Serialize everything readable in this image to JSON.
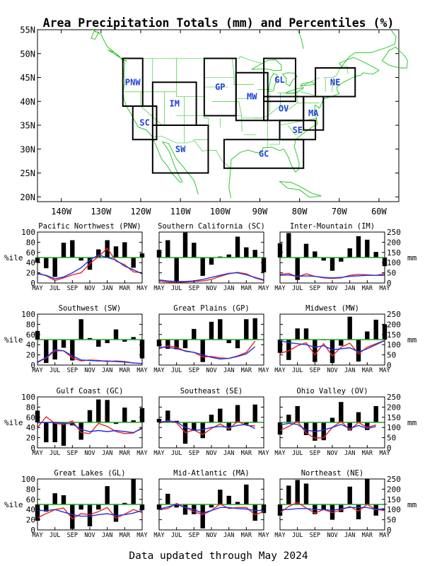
{
  "title": "Area Precipitation Totals (mm) and Percentiles (%)",
  "footer": "Data updated through May 2024",
  "colors": {
    "coast": "#19c419",
    "border": "#19c419",
    "region_label": "#1d3fe0",
    "bar": "#000000",
    "red_line": "#ee2222",
    "blue_line": "#2233dd",
    "ref_line": "#22aa22"
  },
  "map": {
    "lat_labels": [
      "55N",
      "50N",
      "45N",
      "40N",
      "35N",
      "30N",
      "25N",
      "20N"
    ],
    "lon_labels": [
      "140W",
      "130W",
      "120W",
      "110W",
      "100W",
      "90W",
      "80W",
      "70W",
      "60W"
    ],
    "regions": [
      {
        "code": "PNW",
        "w": -124.5,
        "e": -119.5,
        "s": 39,
        "n": 49
      },
      {
        "code": "SC",
        "w": -122,
        "e": -116,
        "s": 32,
        "n": 39
      },
      {
        "code": "IM",
        "w": -117,
        "e": -106,
        "s": 35,
        "n": 44
      },
      {
        "code": "SW",
        "w": -117,
        "e": -103,
        "s": 25,
        "n": 35
      },
      {
        "code": "GP",
        "w": -104,
        "e": -96,
        "s": 37,
        "n": 49
      },
      {
        "code": "MW",
        "w": -96,
        "e": -88,
        "s": 36,
        "n": 46
      },
      {
        "code": "GL",
        "w": -89,
        "e": -81,
        "s": 40,
        "n": 49
      },
      {
        "code": "OV",
        "w": -89,
        "e": -79,
        "s": 36,
        "n": 41
      },
      {
        "code": "MA",
        "w": -79,
        "e": -74,
        "s": 34,
        "n": 41
      },
      {
        "code": "NE",
        "w": -76,
        "e": -66,
        "s": 41,
        "n": 47
      },
      {
        "code": "SE",
        "w": -85,
        "e": -76,
        "s": 32,
        "n": 36
      },
      {
        "code": "GC",
        "w": -99,
        "e": -79,
        "s": 26,
        "n": 32
      }
    ]
  },
  "panel_common": {
    "x_ticks": [
      "MAY",
      "JUL",
      "SEP",
      "NOV",
      "JAN",
      "MAR",
      "MAY"
    ],
    "left_ticks": [
      "0",
      "20",
      "40",
      "60",
      "80",
      "100"
    ],
    "right_ticks": [
      "0",
      "50",
      "100",
      "150",
      "200",
      "250"
    ],
    "left_label": "%ile",
    "right_label": "mm"
  },
  "chart_data": [
    {
      "type": "bar",
      "title": "Pacific Northwest (PNW)",
      "ylim_percentile": [
        0,
        100
      ],
      "ylim_mm": [
        0,
        250
      ],
      "reference": 50,
      "percentile": [
        40,
        29,
        12,
        79,
        84,
        44,
        26,
        66,
        84,
        72,
        80,
        30,
        58
      ],
      "series": [
        {
          "values": [
            20,
            14,
            5,
            10,
            16,
            20,
            38,
            52,
            68,
            43,
            36,
            22,
            20
          ]
        },
        {
          "values": [
            18,
            15,
            8,
            12,
            20,
            30,
            45,
            55,
            50,
            45,
            33,
            26,
            18
          ]
        }
      ]
    },
    {
      "type": "bar",
      "title": "Southern California (SC)",
      "ylim_percentile": [
        0,
        100
      ],
      "ylim_mm": [
        0,
        250
      ],
      "reference": 50,
      "percentile": [
        65,
        84,
        2,
        99,
        79,
        14,
        36,
        52,
        56,
        91,
        70,
        65,
        21
      ],
      "series": [
        {
          "values": [
            4,
            2,
            1,
            2,
            3,
            4,
            7,
            13,
            18,
            21,
            18,
            10,
            5
          ]
        },
        {
          "values": [
            6,
            4,
            3,
            3,
            4,
            7,
            11,
            15,
            19,
            20,
            16,
            11,
            6
          ]
        }
      ]
    },
    {
      "type": "bar",
      "title": "Inter-Mountain (IM)",
      "ylim_percentile": [
        0,
        100
      ],
      "ylim_mm": [
        0,
        250
      ],
      "reference": 50,
      "percentile": [
        78,
        98,
        6,
        77,
        62,
        44,
        24,
        42,
        68,
        92,
        85,
        61,
        33
      ],
      "series": [
        {
          "values": [
            17,
            19,
            12,
            18,
            13,
            10,
            9,
            10,
            15,
            17,
            16,
            15,
            18
          ]
        },
        {
          "values": [
            15,
            16,
            13,
            14,
            13,
            11,
            10,
            11,
            13,
            14,
            15,
            15,
            15
          ]
        }
      ]
    },
    {
      "type": "bar",
      "title": "Southwest (SW)",
      "ylim_percentile": [
        0,
        100
      ],
      "ylim_mm": [
        0,
        250
      ],
      "reference": 50,
      "percentile": [
        67,
        4,
        11,
        34,
        9,
        90,
        53,
        36,
        43,
        70,
        46,
        55,
        13
      ],
      "series": [
        {
          "values": [
            5,
            14,
            28,
            28,
            14,
            8,
            10,
            9,
            7,
            8,
            7,
            4,
            3
          ]
        },
        {
          "values": [
            6,
            15,
            30,
            28,
            18,
            10,
            9,
            8,
            8,
            7,
            6,
            4,
            3
          ]
        }
      ]
    },
    {
      "type": "bar",
      "title": "Great Plains (GP)",
      "ylim_percentile": [
        0,
        100
      ],
      "ylim_mm": [
        0,
        250
      ],
      "reference": 50,
      "percentile": [
        37,
        32,
        31,
        33,
        71,
        6,
        85,
        90,
        43,
        33,
        90,
        92
      ],
      "series": [
        {
          "values": [
            32,
            38,
            35,
            27,
            25,
            16,
            17,
            14,
            13,
            18,
            25,
            47
          ]
        },
        {
          "values": [
            35,
            35,
            32,
            28,
            25,
            20,
            15,
            12,
            13,
            17,
            22,
            36
          ]
        }
      ]
    },
    {
      "type": "bar",
      "title": "Midwest (MW)",
      "ylim_percentile": [
        0,
        100
      ],
      "ylim_mm": [
        0,
        250
      ],
      "reference": 50,
      "percentile": [
        24,
        10,
        72,
        72,
        6,
        49,
        4,
        38,
        95,
        7,
        66,
        89,
        80
      ],
      "series": [
        {
          "values": [
            23,
            28,
            38,
            44,
            20,
            42,
            18,
            35,
            43,
            22,
            35,
            42,
            48
          ]
        },
        {
          "values": [
            48,
            44,
            42,
            40,
            35,
            38,
            30,
            32,
            34,
            26,
            32,
            40,
            48
          ]
        }
      ]
    },
    {
      "type": "bar",
      "title": "Gulf Coast (GC)",
      "ylim_percentile": [
        0,
        100
      ],
      "ylim_mm": [
        0,
        250
      ],
      "reference": 50,
      "percentile": [
        73,
        11,
        11,
        4,
        44,
        16,
        74,
        95,
        94,
        47,
        79,
        54,
        78
      ],
      "series": [
        {
          "values": [
            40,
            61,
            48,
            46,
            53,
            30,
            28,
            48,
            42,
            32,
            28,
            29,
            40
          ]
        },
        {
          "values": [
            49,
            50,
            50,
            48,
            47,
            36,
            32,
            34,
            32,
            34,
            32,
            30,
            38
          ]
        }
      ]
    },
    {
      "type": "bar",
      "title": "Southeast (SE)",
      "ylim_percentile": [
        0,
        100
      ],
      "ylim_mm": [
        0,
        250
      ],
      "reference": 50,
      "percentile": [
        57,
        73,
        53,
        8,
        35,
        19,
        65,
        77,
        34,
        84,
        46,
        85
      ],
      "series": [
        {
          "values": [
            48,
            54,
            49,
            30,
            35,
            26,
            38,
            47,
            37,
            52,
            44,
            43
          ]
        },
        {
          "values": [
            50,
            53,
            51,
            40,
            34,
            36,
            40,
            42,
            40,
            44,
            46,
            38
          ]
        }
      ]
    },
    {
      "type": "bar",
      "title": "Ohio Valley (OV)",
      "ylim_percentile": [
        0,
        100
      ],
      "ylim_mm": [
        0,
        250
      ],
      "reference": 50,
      "percentile": [
        26,
        65,
        82,
        25,
        14,
        15,
        59,
        90,
        34,
        70,
        35,
        82
      ],
      "series": [
        {
          "values": [
            34,
            42,
            52,
            29,
            19,
            20,
            40,
            52,
            35,
            50,
            40,
            45
          ]
        },
        {
          "values": [
            45,
            48,
            46,
            35,
            32,
            35,
            40,
            46,
            38,
            44,
            38,
            42
          ]
        }
      ]
    },
    {
      "type": "bar",
      "title": "Great Lakes (GL)",
      "ylim_percentile": [
        0,
        100
      ],
      "ylim_mm": [
        0,
        250
      ],
      "reference": 50,
      "percentile": [
        18,
        36,
        72,
        68,
        2,
        40,
        7,
        40,
        86,
        16,
        53,
        100,
        39
      ],
      "series": [
        {
          "values": [
            24,
            32,
            40,
            43,
            22,
            32,
            30,
            36,
            44,
            23,
            31,
            40,
            34
          ]
        },
        {
          "values": [
            38,
            38,
            40,
            35,
            30,
            27,
            27,
            30,
            32,
            28,
            30,
            33,
            38
          ]
        }
      ]
    },
    {
      "type": "bar",
      "title": "Mid-Atlantic (MA)",
      "ylim_percentile": [
        0,
        100
      ],
      "ylim_mm": [
        0,
        250
      ],
      "reference": 50,
      "percentile": [
        40,
        71,
        44,
        30,
        31,
        3,
        44,
        79,
        67,
        55,
        89,
        18,
        33
      ],
      "series": [
        {
          "values": [
            40,
            42,
            52,
            44,
            36,
            30,
            38,
            51,
            42,
            44,
            44,
            30,
            36
          ]
        },
        {
          "values": [
            41,
            45,
            50,
            44,
            40,
            33,
            38,
            44,
            44,
            42,
            41,
            38,
            38
          ]
        }
      ]
    },
    {
      "type": "bar",
      "title": "Northeast (NE)",
      "ylim_percentile": [
        0,
        100
      ],
      "ylim_mm": [
        0,
        250
      ],
      "reference": 50,
      "percentile": [
        28,
        87,
        98,
        91,
        31,
        40,
        20,
        35,
        85,
        21,
        100,
        28,
        51
      ],
      "series": [
        {
          "values": [
            34,
            46,
            54,
            43,
            33,
            40,
            34,
            39,
            46,
            37,
            50,
            40,
            38
          ]
        },
        {
          "values": [
            40,
            40,
            42,
            42,
            40,
            40,
            38,
            42,
            44,
            44,
            44,
            40,
            42
          ]
        }
      ]
    }
  ]
}
